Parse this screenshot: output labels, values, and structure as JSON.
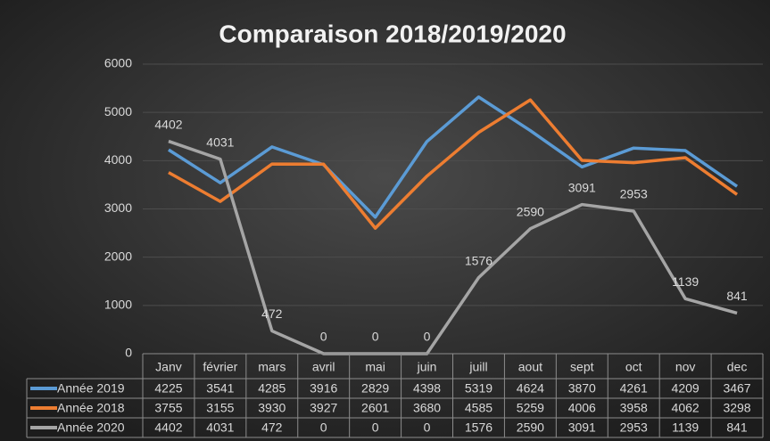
{
  "chart_data": {
    "type": "line",
    "title": "Comparaison 2018/2019/2020",
    "categories": [
      "Janv",
      "février",
      "mars",
      "avril",
      "mai",
      "juin",
      "juill",
      "aout",
      "sept",
      "oct",
      "nov",
      "dec"
    ],
    "series": [
      {
        "name": "Année 2019",
        "color": "#5b9bd5",
        "values": [
          4225,
          3541,
          4285,
          3916,
          2829,
          4398,
          5319,
          4624,
          3870,
          4261,
          4209,
          3467
        ]
      },
      {
        "name": "Année 2018",
        "color": "#ed7d31",
        "values": [
          3755,
          3155,
          3930,
          3927,
          2601,
          3680,
          4585,
          5259,
          4006,
          3958,
          4062,
          3298
        ]
      },
      {
        "name": "Année 2020",
        "color": "#a5a5a5",
        "values": [
          4402,
          4031,
          472,
          0,
          0,
          0,
          1576,
          2590,
          3091,
          2953,
          1139,
          841
        ],
        "data_labels": true
      }
    ],
    "ylim": [
      0,
      6000
    ],
    "yticks": [
      0,
      1000,
      2000,
      3000,
      4000,
      5000,
      6000
    ],
    "grid": true,
    "data_table": true
  }
}
